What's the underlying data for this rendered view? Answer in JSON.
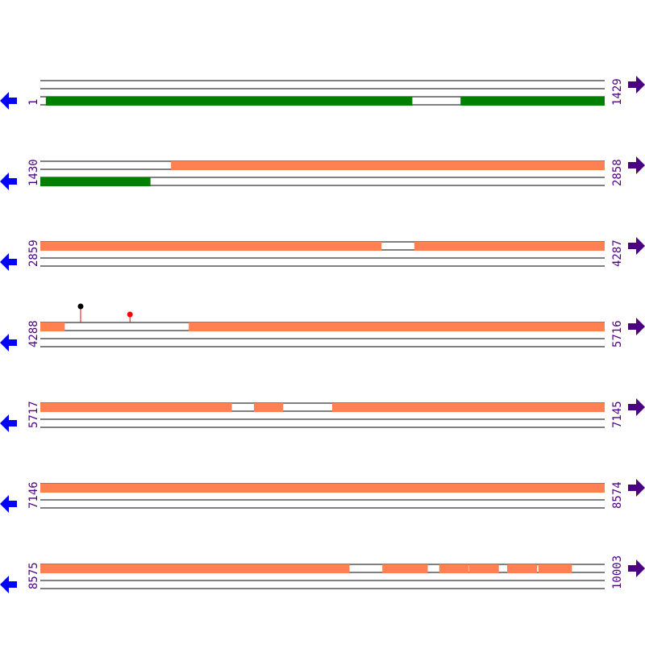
{
  "colors": {
    "cds": "#008000",
    "feature": "#FF8050",
    "line": "#000000",
    "label": "#4B0082",
    "reverse_arrow": "#0000FF",
    "forward_arrow": "#4B0082",
    "marker_black": "#000000",
    "marker_red": "#FF0000",
    "stem": "#FF0000"
  },
  "bp_per_row": 1429,
  "rows": [
    {
      "start": "1",
      "end": "1429",
      "start_bp": 1,
      "end_bp": 1429,
      "segments": [
        {
          "track": 1,
          "from": 15,
          "to": 942,
          "color": "cds"
        },
        {
          "track": 1,
          "from": 1065,
          "to": 1429,
          "color": "cds"
        }
      ],
      "markers": []
    },
    {
      "start": "1430",
      "end": "2858",
      "start_bp": 1430,
      "end_bp": 2858,
      "segments": [
        {
          "track": 0,
          "from": 1761,
          "to": 2858,
          "color": "feature"
        },
        {
          "track": 1,
          "from": 1430,
          "to": 1708,
          "color": "cds"
        }
      ],
      "markers": []
    },
    {
      "start": "2859",
      "end": "4287",
      "start_bp": 2859,
      "end_bp": 4287,
      "segments": [
        {
          "track": 0,
          "from": 2859,
          "to": 3722,
          "color": "feature"
        },
        {
          "track": 0,
          "from": 3806,
          "to": 4287,
          "color": "feature"
        }
      ],
      "markers": []
    },
    {
      "start": "4288",
      "end": "5716",
      "start_bp": 4288,
      "end_bp": 5716,
      "segments": [
        {
          "track": 0,
          "from": 4288,
          "to": 4349,
          "color": "feature"
        },
        {
          "track": 0,
          "from": 4664,
          "to": 5716,
          "color": "feature"
        }
      ],
      "markers": [
        {
          "pos": 4390,
          "color": "marker_black",
          "height": "tall"
        },
        {
          "pos": 4515,
          "color": "marker_red",
          "height": "short"
        }
      ]
    },
    {
      "start": "5717",
      "end": "7145",
      "start_bp": 5717,
      "end_bp": 7145,
      "segments": [
        {
          "track": 0,
          "from": 5717,
          "to": 6201,
          "color": "feature"
        },
        {
          "track": 0,
          "from": 6258,
          "to": 6331,
          "color": "feature"
        },
        {
          "track": 0,
          "from": 6456,
          "to": 7145,
          "color": "feature"
        }
      ],
      "markers": []
    },
    {
      "start": "7146",
      "end": "8574",
      "start_bp": 7146,
      "end_bp": 8574,
      "segments": [
        {
          "track": 0,
          "from": 7146,
          "to": 8574,
          "color": "feature"
        }
      ],
      "markers": []
    },
    {
      "start": "8575",
      "end": "10003",
      "start_bp": 8575,
      "end_bp": 10003,
      "segments": [
        {
          "track": 0,
          "from": 8575,
          "to": 9357,
          "color": "feature"
        },
        {
          "track": 0,
          "from": 9441,
          "to": 9555,
          "color": "feature"
        },
        {
          "track": 0,
          "from": 9585,
          "to": 9659,
          "color": "feature"
        },
        {
          "track": 0,
          "from": 9661,
          "to": 9735,
          "color": "feature"
        },
        {
          "track": 0,
          "from": 9757,
          "to": 9832,
          "color": "feature"
        },
        {
          "track": 0,
          "from": 9836,
          "to": 9920,
          "color": "feature"
        }
      ],
      "markers": []
    }
  ]
}
